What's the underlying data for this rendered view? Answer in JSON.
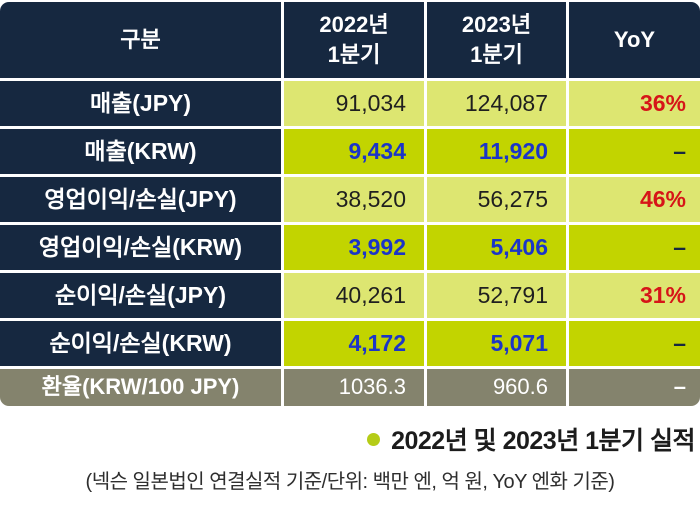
{
  "chart_data": {
    "type": "table",
    "title": "2022년 및 2023년 1분기 실적",
    "columns": [
      "구분",
      "2022년 1분기",
      "2023년 1분기",
      "YoY"
    ],
    "rows": [
      [
        "매출(JPY)",
        "91,034",
        "124,087",
        "36%"
      ],
      [
        "매출(KRW)",
        "9,434",
        "11,920",
        "–"
      ],
      [
        "영업이익/손실(JPY)",
        "38,520",
        "56,275",
        "46%"
      ],
      [
        "영업이익/손실(KRW)",
        "3,992",
        "5,406",
        "–"
      ],
      [
        "순이익/손실(JPY)",
        "40,261",
        "52,791",
        "31%"
      ],
      [
        "순이익/손실(KRW)",
        "4,172",
        "5,071",
        "–"
      ],
      [
        "환율(KRW/100 JPY)",
        "1036.3",
        "960.6",
        "–"
      ]
    ],
    "note": "(넥슨 일본법인 연결실적 기준/단위: 백만 엔, 억 원, YoY 엔화 기준)"
  },
  "table": {
    "header": {
      "category": "구분",
      "col2022_line1": "2022년",
      "col2022_line2": "1분기",
      "col2023_line1": "2023년",
      "col2023_line2": "1분기",
      "yoy": "YoY"
    },
    "rows": [
      {
        "label": "매출(JPY)",
        "v2022": "91,034",
        "v2023": "124,087",
        "yoy": "36%"
      },
      {
        "label": "매출(KRW)",
        "v2022": "9,434",
        "v2023": "11,920",
        "yoy": "–"
      },
      {
        "label": "영업이익/손실(JPY)",
        "v2022": "38,520",
        "v2023": "56,275",
        "yoy": "46%"
      },
      {
        "label": "영업이익/손실(KRW)",
        "v2022": "3,992",
        "v2023": "5,406",
        "yoy": "–"
      },
      {
        "label": "순이익/손실(JPY)",
        "v2022": "40,261",
        "v2023": "52,791",
        "yoy": "31%"
      },
      {
        "label": "순이익/손실(KRW)",
        "v2022": "4,172",
        "v2023": "5,071",
        "yoy": "–"
      }
    ],
    "fx_row": {
      "label": "환율(KRW/100 JPY)",
      "v2022": "1036.3",
      "v2023": "960.6",
      "yoy": "–"
    }
  },
  "notes": {
    "highlight": "2022년 및 2023년 1분기 실적",
    "caption": "(넥슨 일본법인 연결실적 기준/단위: 백만 엔, 억 원, YoY 엔화 기준)"
  },
  "colors": {
    "header_navy": "#162840",
    "row_jpy_green": "#dde671",
    "row_krw_green": "#c2d400",
    "fx_gray": "#84836d",
    "yoy_red": "#d61518",
    "krw_blue": "#1b35c8",
    "bullet_green": "#b5cc17"
  }
}
